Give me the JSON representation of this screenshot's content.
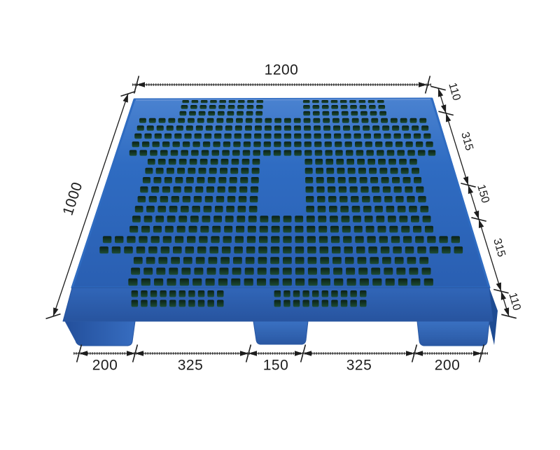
{
  "title": "Plastic pallet dimension diagram",
  "subject": "blue-plastic-pallet",
  "colors": {
    "background": "#ffffff",
    "dim_line": "#1d1d1d",
    "dim_text": "#1d1d1d",
    "deck_light": "#4a82d0",
    "deck_mid": "#2f6cc2",
    "deck_dark": "#2a5fb2",
    "front_light": "#3166b8",
    "front_dark": "#27549f",
    "foot_light": "#3a71c2",
    "foot_dark": "#2a58a3",
    "side_dark": "#1e4b92",
    "hole_dark": "#0b2015",
    "hole_green": "#1d4c36",
    "rim_highlight": "#6c97d8"
  },
  "dimensions": {
    "top": {
      "label": "1200"
    },
    "left": {
      "label": "1000"
    },
    "right_chain": [
      {
        "label": "110"
      },
      {
        "label": "315"
      },
      {
        "label": "150"
      },
      {
        "label": "315"
      },
      {
        "label": "110"
      }
    ],
    "bottom_chain": [
      {
        "label": "200"
      },
      {
        "label": "325"
      },
      {
        "label": "150"
      },
      {
        "label": "325"
      },
      {
        "label": "200"
      }
    ]
  }
}
